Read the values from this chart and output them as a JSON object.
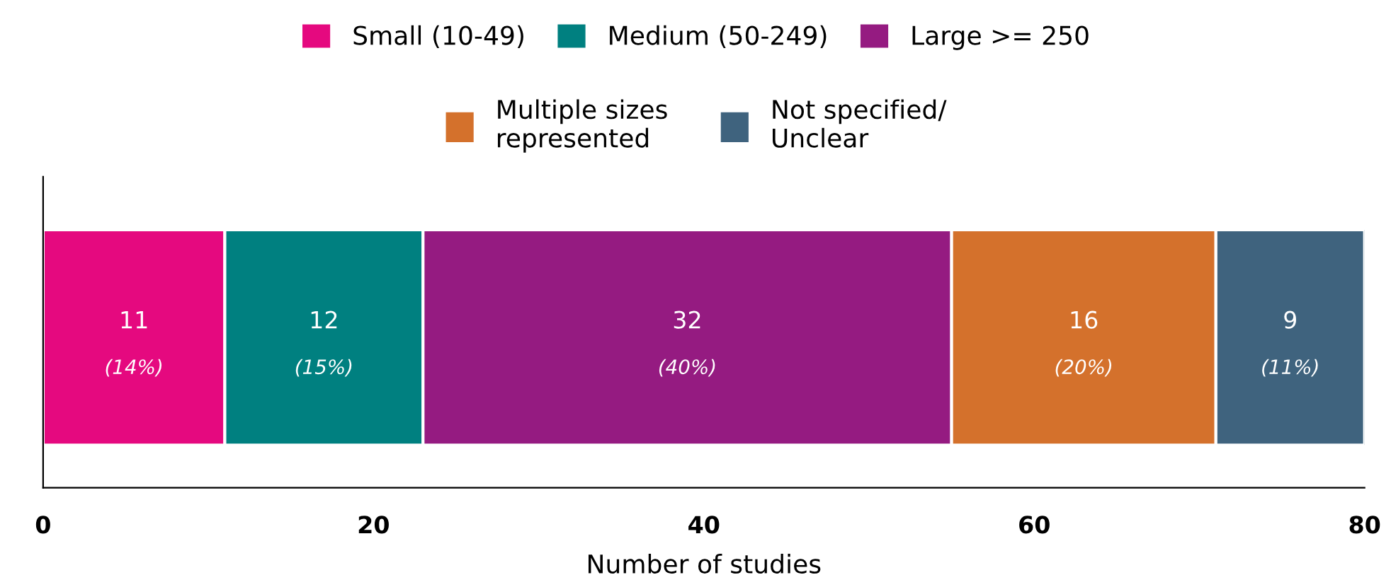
{
  "chart_data": {
    "type": "bar",
    "orientation": "horizontal",
    "stacked": true,
    "categories": [
      null
    ],
    "xlabel": "Number of studies",
    "xlim": [
      0,
      80
    ],
    "xticks": [
      0,
      20,
      40,
      60,
      80
    ],
    "grid": false,
    "legend": "top",
    "series": [
      {
        "name": "Small (10-49)",
        "color": "#e5097f",
        "values": [
          11
        ],
        "value_labels": [
          "11\n(14%)"
        ]
      },
      {
        "name": "Medium (50-249)",
        "color": "#008080",
        "values": [
          12
        ],
        "value_labels": [
          "12\n(15%)"
        ]
      },
      {
        "name": "Large >= 250",
        "color": "#951b81",
        "values": [
          32
        ],
        "value_labels": [
          "32\n(40%)"
        ]
      },
      {
        "name": "Multiple sizes\nrepresented",
        "color": "#d4712c",
        "values": [
          16
        ],
        "value_labels": [
          "16\n(20%)"
        ]
      },
      {
        "name": "Not specified/\nUnclear",
        "color": "#3f637e",
        "values": [
          9
        ],
        "value_labels": [
          "9\n(11%)"
        ]
      }
    ]
  }
}
